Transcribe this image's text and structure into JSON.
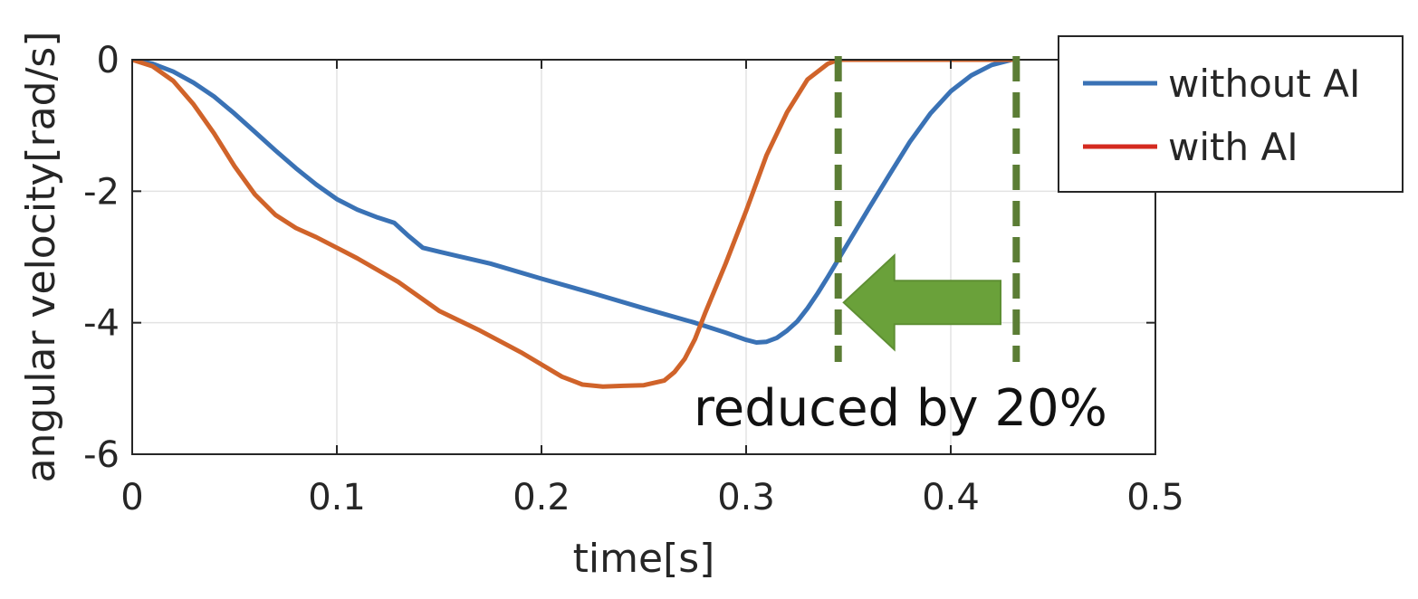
{
  "chart_data": {
    "type": "line",
    "xlabel": "time[s]",
    "ylabel": "angular velocity[rad/s]",
    "xlim": [
      0,
      0.5
    ],
    "ylim": [
      -6,
      0
    ],
    "xticks": [
      0,
      0.1,
      0.2,
      0.3,
      0.4,
      0.5
    ],
    "xtick_labels": [
      "0",
      "0.1",
      "0.2",
      "0.3",
      "0.4",
      "0.5"
    ],
    "yticks": [
      0,
      -2,
      -4,
      -6
    ],
    "ytick_labels": [
      "0",
      "-2",
      "-4",
      "-6"
    ],
    "grid": true,
    "legend_position": "top-right",
    "series": [
      {
        "name": "without AI",
        "color": "#3a72b5",
        "legend_color": "#3a72b5",
        "points": [
          [
            0,
            0
          ],
          [
            0.01,
            -0.06
          ],
          [
            0.02,
            -0.18
          ],
          [
            0.03,
            -0.35
          ],
          [
            0.04,
            -0.56
          ],
          [
            0.05,
            -0.82
          ],
          [
            0.06,
            -1.1
          ],
          [
            0.07,
            -1.38
          ],
          [
            0.08,
            -1.65
          ],
          [
            0.09,
            -1.9
          ],
          [
            0.1,
            -2.12
          ],
          [
            0.11,
            -2.28
          ],
          [
            0.12,
            -2.4
          ],
          [
            0.128,
            -2.48
          ],
          [
            0.135,
            -2.68
          ],
          [
            0.142,
            -2.86
          ],
          [
            0.15,
            -2.92
          ],
          [
            0.175,
            -3.1
          ],
          [
            0.2,
            -3.33
          ],
          [
            0.225,
            -3.55
          ],
          [
            0.25,
            -3.78
          ],
          [
            0.275,
            -4.0
          ],
          [
            0.29,
            -4.15
          ],
          [
            0.3,
            -4.26
          ],
          [
            0.305,
            -4.3
          ],
          [
            0.31,
            -4.29
          ],
          [
            0.315,
            -4.23
          ],
          [
            0.32,
            -4.12
          ],
          [
            0.325,
            -3.98
          ],
          [
            0.33,
            -3.78
          ],
          [
            0.335,
            -3.55
          ],
          [
            0.34,
            -3.3
          ],
          [
            0.35,
            -2.78
          ],
          [
            0.36,
            -2.26
          ],
          [
            0.37,
            -1.75
          ],
          [
            0.38,
            -1.25
          ],
          [
            0.39,
            -0.82
          ],
          [
            0.4,
            -0.48
          ],
          [
            0.41,
            -0.24
          ],
          [
            0.42,
            -0.08
          ],
          [
            0.43,
            0
          ]
        ]
      },
      {
        "name": "with AI",
        "color": "#d0632a",
        "legend_color": "#d42a1f",
        "points": [
          [
            0,
            0
          ],
          [
            0.01,
            -0.1
          ],
          [
            0.02,
            -0.32
          ],
          [
            0.03,
            -0.68
          ],
          [
            0.04,
            -1.12
          ],
          [
            0.05,
            -1.62
          ],
          [
            0.06,
            -2.05
          ],
          [
            0.07,
            -2.36
          ],
          [
            0.08,
            -2.56
          ],
          [
            0.09,
            -2.7
          ],
          [
            0.1,
            -2.86
          ],
          [
            0.11,
            -3.02
          ],
          [
            0.12,
            -3.2
          ],
          [
            0.13,
            -3.38
          ],
          [
            0.14,
            -3.6
          ],
          [
            0.15,
            -3.82
          ],
          [
            0.17,
            -4.12
          ],
          [
            0.19,
            -4.45
          ],
          [
            0.21,
            -4.82
          ],
          [
            0.22,
            -4.94
          ],
          [
            0.23,
            -4.97
          ],
          [
            0.24,
            -4.96
          ],
          [
            0.25,
            -4.95
          ],
          [
            0.26,
            -4.88
          ],
          [
            0.265,
            -4.75
          ],
          [
            0.27,
            -4.55
          ],
          [
            0.275,
            -4.25
          ],
          [
            0.28,
            -3.85
          ],
          [
            0.29,
            -3.1
          ],
          [
            0.3,
            -2.3
          ],
          [
            0.31,
            -1.45
          ],
          [
            0.32,
            -0.8
          ],
          [
            0.33,
            -0.3
          ],
          [
            0.34,
            -0.06
          ],
          [
            0.345,
            0
          ],
          [
            0.43,
            0
          ]
        ]
      }
    ],
    "annotations": {
      "text": "reduced by 20%",
      "marker_color": "#5b7d35",
      "arrow_color": "#6aa13a",
      "marker_times": [
        0.345,
        0.432
      ],
      "arrow_from": [
        0.427,
        -3.5
      ],
      "arrow_to": [
        0.345,
        -3.5
      ]
    }
  }
}
